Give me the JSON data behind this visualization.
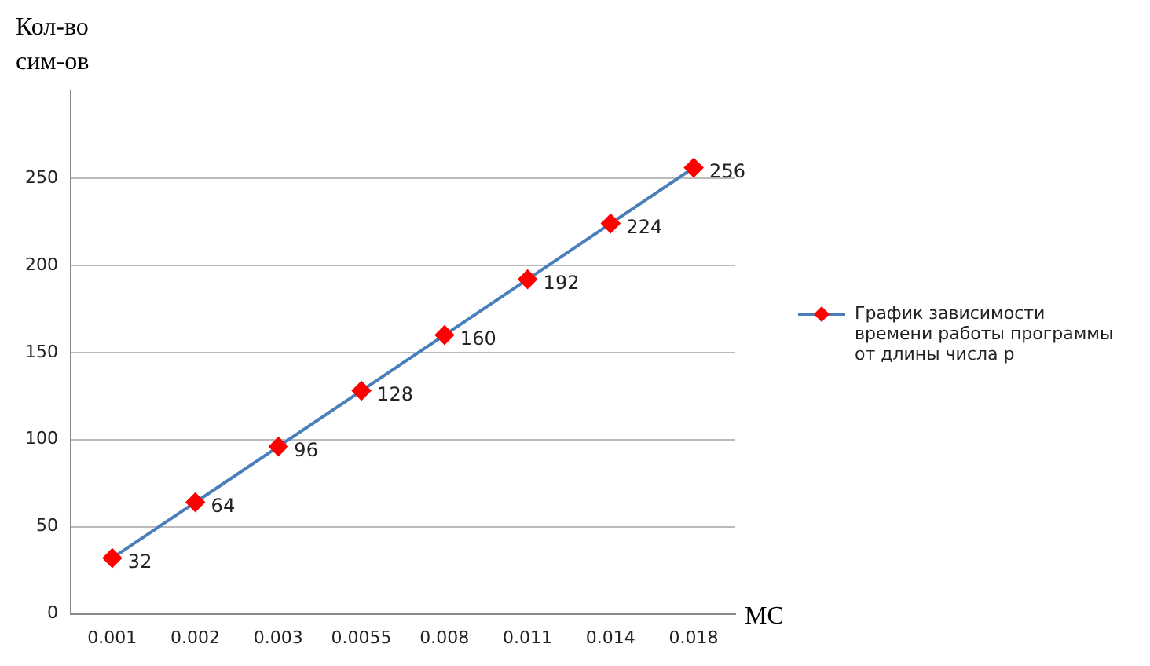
{
  "chart_data": {
    "type": "line",
    "ylabel": "Кол-во\nсим-ов",
    "xlabel": "МС",
    "categories": [
      "0.001",
      "0.002",
      "0.003",
      "0.0055",
      "0.008",
      "0.011",
      "0.014",
      "0.018"
    ],
    "series": [
      {
        "name": "График зависимости времени работы программы от длины числа p",
        "color": "#4a7ebb",
        "colors": [
          "#ff0000",
          "#ff0000",
          "#ff0000",
          "#ff0000",
          "#ff0000",
          "#ff0000",
          "#ff0000",
          "#ff0000"
        ],
        "values": [
          32,
          64,
          96,
          128,
          160,
          192,
          224,
          256
        ]
      }
    ],
    "ylim": [
      0,
      300
    ],
    "yticks": [
      0,
      50,
      100,
      150,
      200,
      250
    ],
    "grid": "y",
    "legend": "right",
    "marker": "diamond",
    "data_labels": true
  }
}
